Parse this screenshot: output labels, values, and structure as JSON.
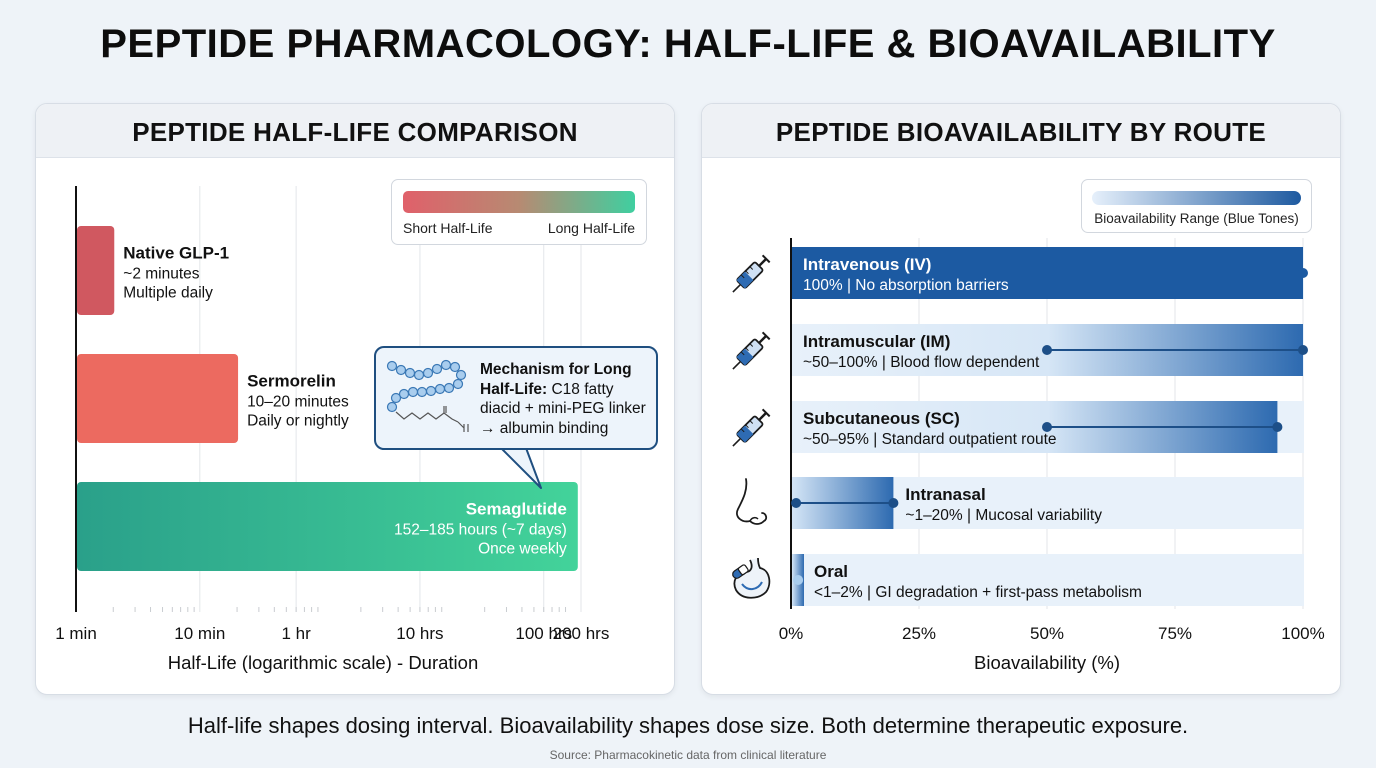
{
  "title": "PEPTIDE PHARMACOLOGY: HALF-LIFE & BIOAVAILABILITY",
  "footer": "Half-life shapes dosing interval. Bioavailability shapes dose size. Both determine therapeutic exposure.",
  "source": "Source: Pharmacokinetic data from clinical literature",
  "chart_data": [
    {
      "type": "bar",
      "orientation": "horizontal",
      "title": "PEPTIDE HALF-LIFE COMPARISON",
      "xlabel": "Half-Life (logarithmic scale) - Duration",
      "xscale": "log",
      "x_unit": "minutes",
      "xlim": [
        1,
        12000
      ],
      "grid": true,
      "x_ticks": [
        {
          "label": "1 min",
          "value": 1
        },
        {
          "label": "10 min",
          "value": 10
        },
        {
          "label": "1 hr",
          "value": 60
        },
        {
          "label": "10 hrs",
          "value": 600
        },
        {
          "label": "100 hrs",
          "value": 6000
        },
        {
          "label": "200 hrs",
          "value": 12000
        }
      ],
      "legend": {
        "placement": "top-right",
        "low_label": "Short Half-Life",
        "high_label": "Long Half-Life",
        "colors": [
          "#e0606a",
          "#3fcfa0"
        ]
      },
      "bars": [
        {
          "name": "Native GLP-1",
          "duration": "~2 minutes",
          "dosing": "Multiple daily",
          "value": 2,
          "color": "#d05860"
        },
        {
          "name": "Sermorelin",
          "duration": "10–20 minutes",
          "dosing": "Daily or nightly",
          "value": 20,
          "color": "#ec6a60"
        },
        {
          "name": "Semaglutide",
          "duration": "152–185 hours (~7 days)",
          "dosing": "Once weekly",
          "value": 11100,
          "color_start": "#2aa08a",
          "color_end": "#43d39a"
        }
      ],
      "annotation": {
        "bold": "Mechanism for Long Half-Life:",
        "text": " C18 fatty diacid + mini-PEG linker → albumin binding",
        "target": "Semaglutide",
        "icon": "molecule-icon"
      }
    },
    {
      "type": "bar",
      "orientation": "horizontal",
      "title": "PEPTIDE BIOAVAILABILITY BY ROUTE",
      "xlabel": "Bioavailability (%)",
      "xlim": [
        0,
        100
      ],
      "grid": true,
      "x_ticks": [
        {
          "label": "0%",
          "value": 0
        },
        {
          "label": "25%",
          "value": 25
        },
        {
          "label": "50%",
          "value": 50
        },
        {
          "label": "75%",
          "value": 75
        },
        {
          "label": "100%",
          "value": 100
        }
      ],
      "legend": {
        "placement": "top-right",
        "label": "Bioavailability Range (Blue Tones)",
        "colors": [
          "#e6f0fb",
          "#1e5aa0"
        ]
      },
      "routes": [
        {
          "name": "Intravenous (IV)",
          "detail": "100% | No absorption barriers",
          "low": 100,
          "high": 100,
          "icon": "syringe-icon"
        },
        {
          "name": "Intramuscular (IM)",
          "detail": "~50–100% | Blood flow dependent",
          "low": 50,
          "high": 100,
          "icon": "syringe-icon"
        },
        {
          "name": "Subcutaneous (SC)",
          "detail": "~50–95% | Standard outpatient route",
          "low": 50,
          "high": 95,
          "icon": "syringe-icon"
        },
        {
          "name": "Intranasal",
          "detail": "~1–20% | Mucosal variability",
          "low": 1,
          "high": 20,
          "icon": "nose-icon"
        },
        {
          "name": "Oral",
          "detail": "<1–2% | GI degradation + first-pass metabolism",
          "low": 1,
          "high": 2,
          "icon": "stomach-pill-icon"
        }
      ]
    }
  ]
}
